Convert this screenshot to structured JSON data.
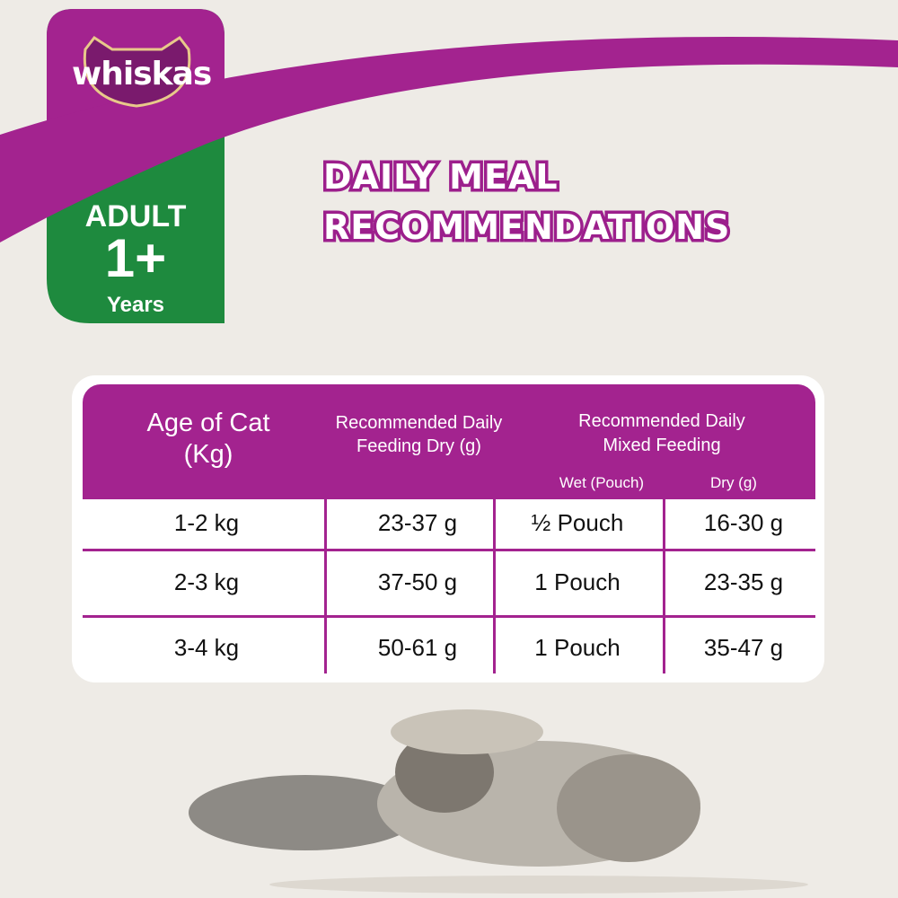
{
  "brand": {
    "logo_text": "whiskas"
  },
  "badge": {
    "line1": "ADULT",
    "line2": "1+",
    "line3": "Years"
  },
  "title": {
    "line1": "DAILY MEAL",
    "line2": "RECOMMENDATIONS"
  },
  "colors": {
    "purple": "#a3238f",
    "green": "#1e8a3e",
    "background": "#eeebe6"
  },
  "table": {
    "headers": {
      "age": "Age of Cat (Kg)",
      "dry": "Recommended Daily Feeding Dry (g)",
      "mixed": "Recommended Daily Mixed Feeding",
      "wet_sub": "Wet (Pouch)",
      "dry_sub": "Dry (g)"
    },
    "rows": [
      {
        "age": "1-2 kg",
        "dry": "23-37 g",
        "wet": "½ Pouch",
        "mixed_dry": "16-30 g"
      },
      {
        "age": "2-3 kg",
        "dry": "37-50 g",
        "wet": "1 Pouch",
        "mixed_dry": "23-35 g"
      },
      {
        "age": "3-4 kg",
        "dry": "50-61 g",
        "wet": "1 Pouch",
        "mixed_dry": "35-47 g"
      }
    ]
  }
}
